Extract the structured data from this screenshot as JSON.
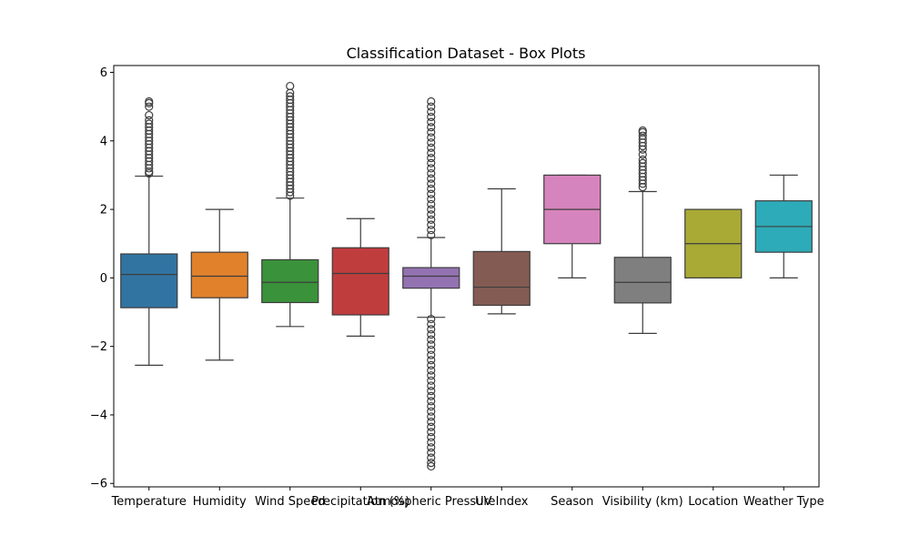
{
  "chart_data": {
    "type": "box",
    "title": "Classification Dataset - Box Plots",
    "xlabel": "",
    "ylabel": "",
    "ylim": [
      -6.1,
      6.2
    ],
    "yticks": [
      -6,
      -4,
      -2,
      0,
      2,
      4,
      6
    ],
    "ytick_labels": [
      "−6",
      "−4",
      "−2",
      "0",
      "2",
      "4",
      "6"
    ],
    "grid": false,
    "categories": [
      "Temperature",
      "Humidity",
      "Wind Speed",
      "Precipitation (%)",
      "Atmospheric Pressure",
      "UV Index",
      "Season",
      "Visibility (km)",
      "Location",
      "Weather Type"
    ],
    "colors": [
      "#3274a1",
      "#e1812c",
      "#3a923a",
      "#c03d3e",
      "#9372b2",
      "#845b53",
      "#d684bd",
      "#7f7f7f",
      "#a9aa35",
      "#2eabb8"
    ],
    "boxes": [
      {
        "whisker_low": -2.55,
        "q1": -0.87,
        "median": 0.1,
        "q3": 0.7,
        "whisker_high": 2.97,
        "outliers": [
          3.05,
          3.1,
          3.2,
          3.3,
          3.4,
          3.5,
          3.6,
          3.7,
          3.8,
          3.9,
          4.0,
          4.1,
          4.2,
          4.3,
          4.4,
          4.5,
          4.6,
          4.75,
          5.0,
          5.1,
          5.15
        ]
      },
      {
        "whisker_low": -2.4,
        "q1": -0.58,
        "median": 0.05,
        "q3": 0.75,
        "whisker_high": 2.0,
        "outliers": []
      },
      {
        "whisker_low": -1.42,
        "q1": -0.72,
        "median": -0.13,
        "q3": 0.53,
        "whisker_high": 2.33,
        "outliers": [
          2.4,
          2.5,
          2.6,
          2.7,
          2.8,
          2.9,
          3.0,
          3.1,
          3.2,
          3.3,
          3.4,
          3.5,
          3.6,
          3.7,
          3.8,
          3.9,
          4.0,
          4.1,
          4.2,
          4.3,
          4.4,
          4.5,
          4.6,
          4.7,
          4.8,
          4.9,
          5.0,
          5.1,
          5.2,
          5.3,
          5.4,
          5.6
        ]
      },
      {
        "whisker_low": -1.7,
        "q1": -1.08,
        "median": 0.13,
        "q3": 0.88,
        "whisker_high": 1.73,
        "outliers": []
      },
      {
        "whisker_low": -1.15,
        "q1": -0.3,
        "median": 0.05,
        "q3": 0.3,
        "whisker_high": 1.18,
        "outliers": [
          1.25,
          1.4,
          1.55,
          1.7,
          1.85,
          2.0,
          2.15,
          2.3,
          2.45,
          2.6,
          2.75,
          2.9,
          3.05,
          3.2,
          3.35,
          3.5,
          3.65,
          3.8,
          3.95,
          4.1,
          4.25,
          4.4,
          4.55,
          4.7,
          4.85,
          5.0,
          5.15,
          -1.2,
          -1.35,
          -1.5,
          -1.65,
          -1.8,
          -1.95,
          -2.1,
          -2.25,
          -2.4,
          -2.55,
          -2.7,
          -2.85,
          -3.0,
          -3.15,
          -3.3,
          -3.45,
          -3.6,
          -3.75,
          -3.9,
          -4.05,
          -4.2,
          -4.35,
          -4.5,
          -4.65,
          -4.8,
          -4.95,
          -5.1,
          -5.25,
          -5.4,
          -5.5
        ]
      },
      {
        "whisker_low": -1.05,
        "q1": -0.8,
        "median": -0.27,
        "q3": 0.77,
        "whisker_high": 2.6,
        "outliers": []
      },
      {
        "whisker_low": 0.0,
        "q1": 1.0,
        "median": 2.0,
        "q3": 3.0,
        "whisker_high": 3.0,
        "outliers": []
      },
      {
        "whisker_low": -1.62,
        "q1": -0.73,
        "median": -0.13,
        "q3": 0.6,
        "whisker_high": 2.52,
        "outliers": [
          2.65,
          2.75,
          2.85,
          2.95,
          3.05,
          3.15,
          3.25,
          3.35,
          3.45,
          3.6,
          3.75,
          3.85,
          3.95,
          4.05,
          4.15,
          4.25,
          4.3
        ]
      },
      {
        "whisker_low": 0.0,
        "q1": 0.0,
        "median": 1.0,
        "q3": 2.0,
        "whisker_high": 2.0,
        "outliers": []
      },
      {
        "whisker_low": 0.0,
        "q1": 0.75,
        "median": 1.5,
        "q3": 2.25,
        "whisker_high": 3.0,
        "outliers": []
      }
    ]
  }
}
